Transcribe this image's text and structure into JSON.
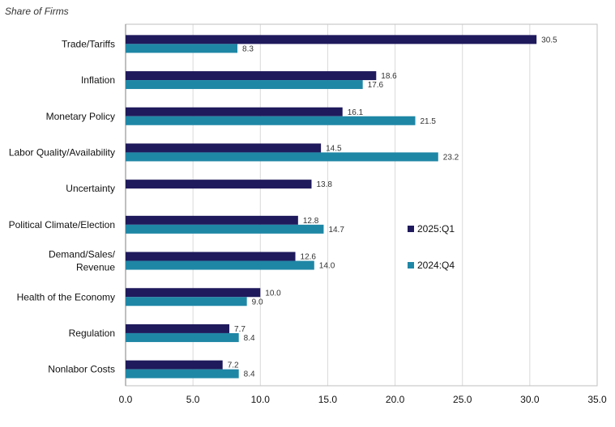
{
  "chart_data": {
    "type": "bar",
    "orientation": "horizontal",
    "subtitle": "Share of Firms",
    "categories": [
      [
        "Trade/Tariffs"
      ],
      [
        "Inflation"
      ],
      [
        "Monetary Policy"
      ],
      [
        "Labor Quality/Availability"
      ],
      [
        "Uncertainty"
      ],
      [
        "Political Climate/Election"
      ],
      [
        "Demand/Sales/",
        "Revenue"
      ],
      [
        "Health of the Economy"
      ],
      [
        "Regulation"
      ],
      [
        "Nonlabor Costs"
      ]
    ],
    "series": [
      {
        "name": "2025:Q1",
        "color": "#1f1a5c",
        "values": [
          30.5,
          18.6,
          16.1,
          14.5,
          13.8,
          12.8,
          12.6,
          10.0,
          7.7,
          7.2
        ]
      },
      {
        "name": "2024:Q4",
        "color": "#1f87a6",
        "values": [
          8.3,
          17.6,
          21.5,
          23.2,
          null,
          14.7,
          14.0,
          9.0,
          8.4,
          8.4
        ]
      }
    ],
    "xlim": [
      0,
      35
    ],
    "xticks": [
      "0.0",
      "5.0",
      "10.0",
      "15.0",
      "20.0",
      "25.0",
      "30.0",
      "35.0"
    ],
    "grid": true,
    "legend_position": "right"
  }
}
